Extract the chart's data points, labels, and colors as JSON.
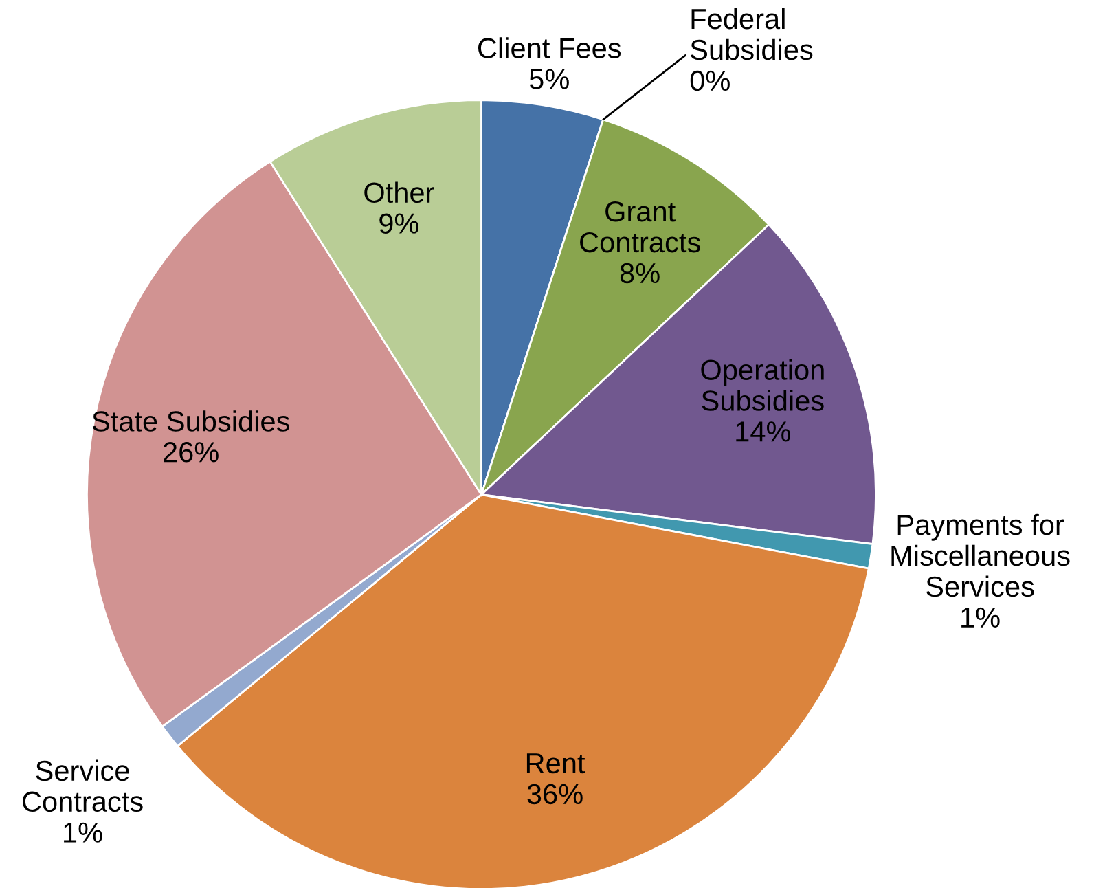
{
  "chart_data": {
    "type": "pie",
    "categories": [
      "Client Fees",
      "Federal\nSubsidies",
      "Grant\nContracts",
      "Operation\nSubsidies",
      "Payments for\nMiscellaneous\nServices",
      "Rent",
      "Service\nContracts",
      "State Subsidies",
      "Other"
    ],
    "values": [
      5,
      0,
      8,
      14,
      1,
      36,
      1,
      26,
      9
    ],
    "value_labels": [
      "5%",
      "0%",
      "8%",
      "14%",
      "1%",
      "36%",
      "1%",
      "26%",
      "9%"
    ],
    "colors": [
      "#4572a7",
      "#aa4643",
      "#89a54e",
      "#71588f",
      "#4198af",
      "#db843d",
      "#93a9cf",
      "#d19392",
      "#b9cd96"
    ],
    "legend": false
  }
}
